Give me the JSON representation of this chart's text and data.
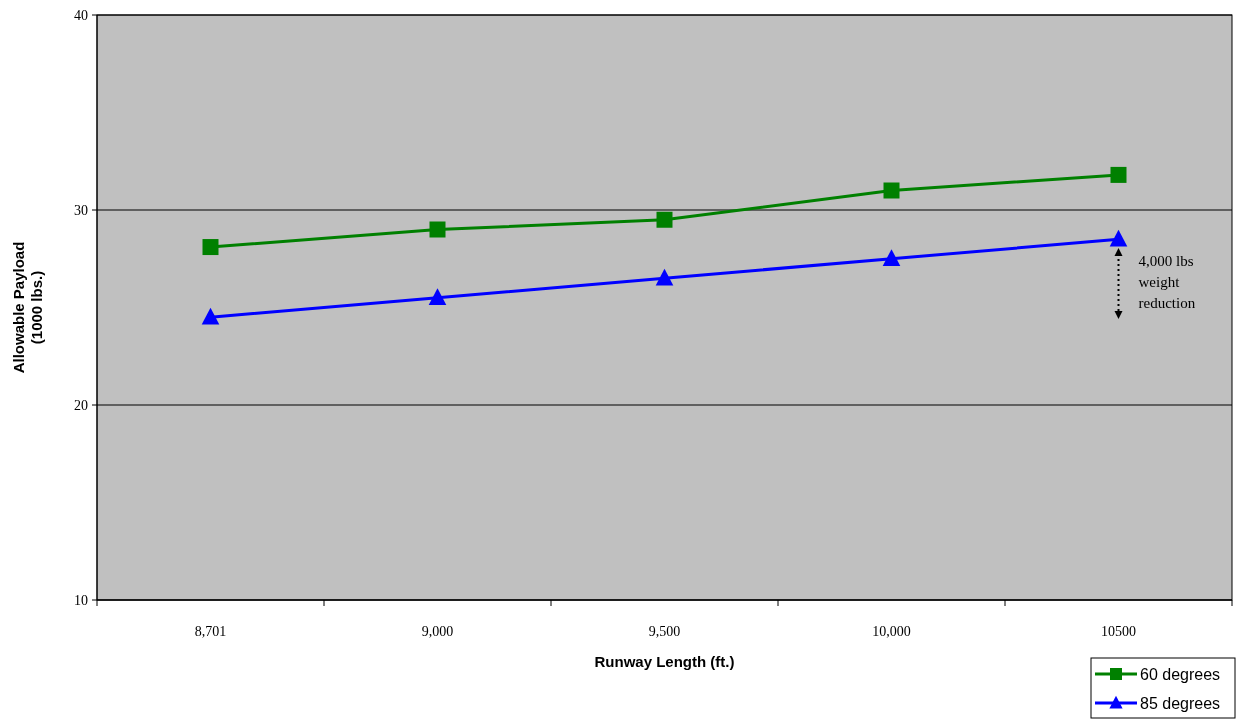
{
  "chart_data": {
    "type": "line",
    "xlabel": "Runway Length (ft.)",
    "ylabel": "Allowable Payload\n(1000 lbs.)",
    "categories": [
      "8,701",
      "9,000",
      "9,500",
      "10,000",
      "10500"
    ],
    "series": [
      {
        "name": "60 degrees",
        "color": "#008000",
        "marker": "square",
        "values": [
          28.1,
          29.0,
          29.5,
          31.0,
          31.8
        ]
      },
      {
        "name": "85 degrees",
        "color": "#0000ff",
        "marker": "triangle",
        "values": [
          24.5,
          25.5,
          26.5,
          27.5,
          28.5
        ]
      }
    ],
    "ylim": [
      10,
      40
    ],
    "yticks": [
      10,
      20,
      30,
      40
    ],
    "grid": "y",
    "legend": "bottom right",
    "line_style": "solid",
    "annotations": [
      "4,000 lbs\nweight\nreduction"
    ]
  }
}
